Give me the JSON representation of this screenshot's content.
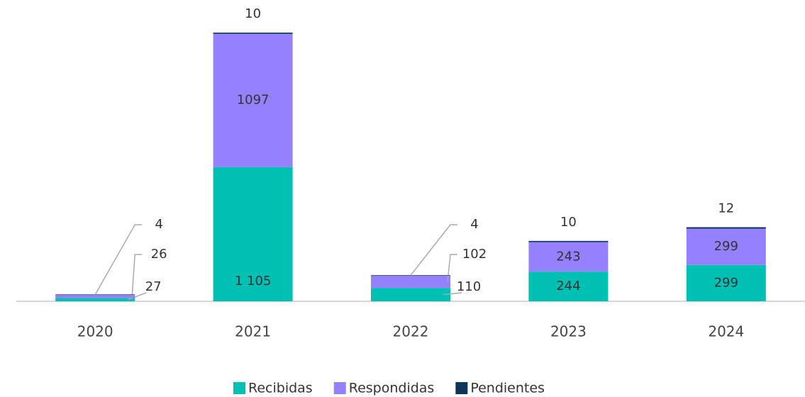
{
  "chart_data": {
    "type": "bar",
    "stacked": true,
    "categories": [
      "2020",
      "2021",
      "2022",
      "2023",
      "2024"
    ],
    "series": [
      {
        "name": "Recibidas",
        "color": "#00bfb3",
        "values": [
          27,
          1105,
          110,
          244,
          299
        ],
        "value_labels": [
          "27",
          "1 105",
          "110",
          "244",
          "299"
        ]
      },
      {
        "name": "Respondidas",
        "color": "#9580ff",
        "values": [
          26,
          1097,
          102,
          243,
          299
        ]
      },
      {
        "name": "Pendientes",
        "color": "#0c3557",
        "values": [
          4,
          10,
          4,
          10,
          12
        ]
      }
    ],
    "legend": "bottom"
  }
}
